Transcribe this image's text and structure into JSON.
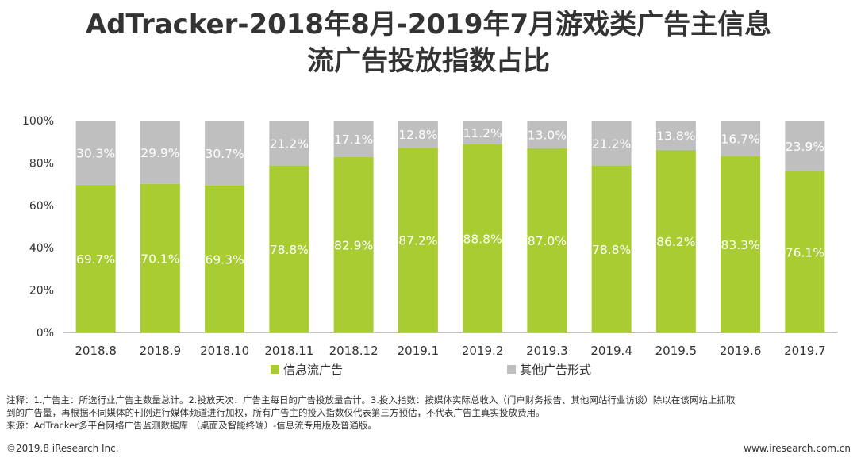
{
  "title_line1": "AdTracker-2018年8月-2019年7月游戏类广告主信息",
  "title_line2": "流广告投放指数占比",
  "chart_data": {
    "type": "bar",
    "stacked": true,
    "categories": [
      "2018.8",
      "2018.9",
      "2018.10",
      "2018.11",
      "2018.12",
      "2019.1",
      "2019.2",
      "2019.3",
      "2019.4",
      "2019.5",
      "2019.6",
      "2019.7"
    ],
    "series": [
      {
        "name": "信息流广告",
        "color": "#a8cc32",
        "values": [
          69.7,
          70.1,
          69.3,
          78.8,
          82.9,
          87.2,
          88.8,
          87.0,
          78.8,
          86.2,
          83.3,
          76.1
        ],
        "labels": [
          "69.7%",
          "70.1%",
          "69.3%",
          "78.8%",
          "82.9%",
          "87.2%",
          "88.8%",
          "87.0%",
          "78.8%",
          "86.2%",
          "83.3%",
          "76.1%"
        ]
      },
      {
        "name": "其他广告形式",
        "color": "#bfbfbf",
        "values": [
          30.3,
          29.9,
          30.7,
          21.2,
          17.1,
          12.8,
          11.2,
          13.0,
          21.2,
          13.8,
          16.7,
          23.9
        ],
        "labels": [
          "30.3%",
          "29.9%",
          "30.7%",
          "21.2%",
          "17.1%",
          "12.8%",
          "11.2%",
          "13.0%",
          "21.2%",
          "13.8%",
          "16.7%",
          "23.9%"
        ]
      }
    ],
    "ylim": [
      0,
      100
    ],
    "yticks": [
      "0%",
      "20%",
      "40%",
      "60%",
      "80%",
      "100%"
    ],
    "legend_position": "bottom",
    "grid": false
  },
  "note_line1": "注释：1.广告主：所选行业广告主数量总计。2.投放天次：广告主每日的广告投放量合计。3.投入指数：按媒体实际总收入（门户财务报告、其他网站行业访谈）除以在该网站上抓取",
  "note_line2": "到的广告量，再根据不同媒体的刊例进行媒体频道进行加权，所有广告主的投入指数仅代表第三方预估，不代表广告主真实投放费用。",
  "source": "来源：AdTracker多平台网络广告监测数据库 （桌面及智能终端）-信息流专用版及普通版。",
  "copyright": "©2019.8 iResearch Inc.",
  "website": "www.iresearch.com.cn"
}
